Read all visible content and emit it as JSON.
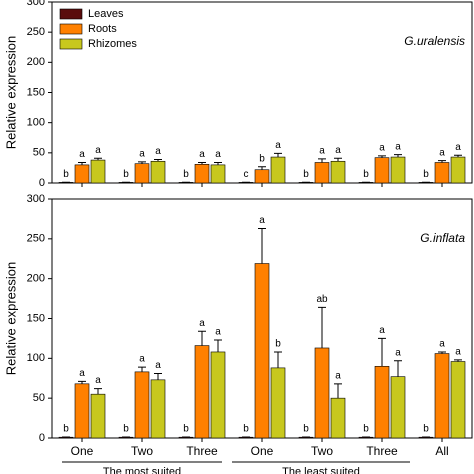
{
  "chart_data": [
    {
      "type": "bar",
      "annotation": "G.uralensis",
      "ylabel": "Relative expression",
      "ylim": [
        0,
        300
      ],
      "yticks": [
        0,
        50,
        100,
        150,
        200,
        250,
        300
      ],
      "legend": "upper left",
      "series": [
        {
          "name": "Leaves",
          "color": "#5a0c0c",
          "values": [
            1,
            1,
            1,
            1,
            1,
            1,
            1
          ],
          "errors": [
            0.3,
            0.3,
            0.3,
            0.3,
            0.3,
            0.3,
            0.3
          ],
          "letters": [
            "b",
            "b",
            "b",
            "c",
            "b",
            "b",
            "b"
          ]
        },
        {
          "name": "Roots",
          "color": "#ff8000",
          "values": [
            30,
            32,
            31,
            22,
            34,
            42,
            34
          ],
          "errors": [
            4,
            3,
            3,
            5,
            6,
            3,
            3
          ],
          "letters": [
            "a",
            "a",
            "a",
            "b",
            "a",
            "a",
            "a"
          ]
        },
        {
          "name": "Rhizomes",
          "color": "#c8c81e",
          "values": [
            38,
            36,
            30,
            43,
            36,
            43,
            43
          ],
          "errors": [
            3,
            3,
            4,
            6,
            5,
            4,
            3
          ],
          "letters": [
            "a",
            "a",
            "a",
            "a",
            "a",
            "a",
            "a"
          ]
        }
      ]
    },
    {
      "type": "bar",
      "annotation": "G.inflata",
      "ylabel": "Relative expression",
      "ylim": [
        0,
        300
      ],
      "yticks": [
        0,
        50,
        100,
        150,
        200,
        250,
        300
      ],
      "categories": [
        "One",
        "Two",
        "Three",
        "One",
        "Two",
        "Three",
        "All"
      ],
      "group_labels": [
        "The most suited",
        "The least suited"
      ],
      "series": [
        {
          "color": "#5a0c0c",
          "values": [
            1,
            1,
            1,
            1,
            1,
            1,
            1
          ],
          "errors": [
            0.3,
            0.3,
            0.3,
            0.3,
            0.3,
            0.3,
            0.3
          ],
          "letters": [
            "b",
            "b",
            "b",
            "b",
            "b",
            "b",
            "b"
          ]
        },
        {
          "color": "#ff8000",
          "values": [
            68,
            83,
            116,
            219,
            113,
            90,
            106
          ],
          "errors": [
            3,
            6,
            18,
            44,
            51,
            35,
            2
          ],
          "letters": [
            "a",
            "a",
            "a",
            "a",
            "ab",
            "a",
            "a"
          ]
        },
        {
          "color": "#c8c81e",
          "values": [
            55,
            73,
            108,
            88,
            50,
            77,
            96
          ],
          "errors": [
            7,
            8,
            15,
            20,
            18,
            20,
            2
          ],
          "letters": [
            "a",
            "a",
            "a",
            "b",
            "a",
            "a",
            "a"
          ]
        }
      ]
    }
  ]
}
